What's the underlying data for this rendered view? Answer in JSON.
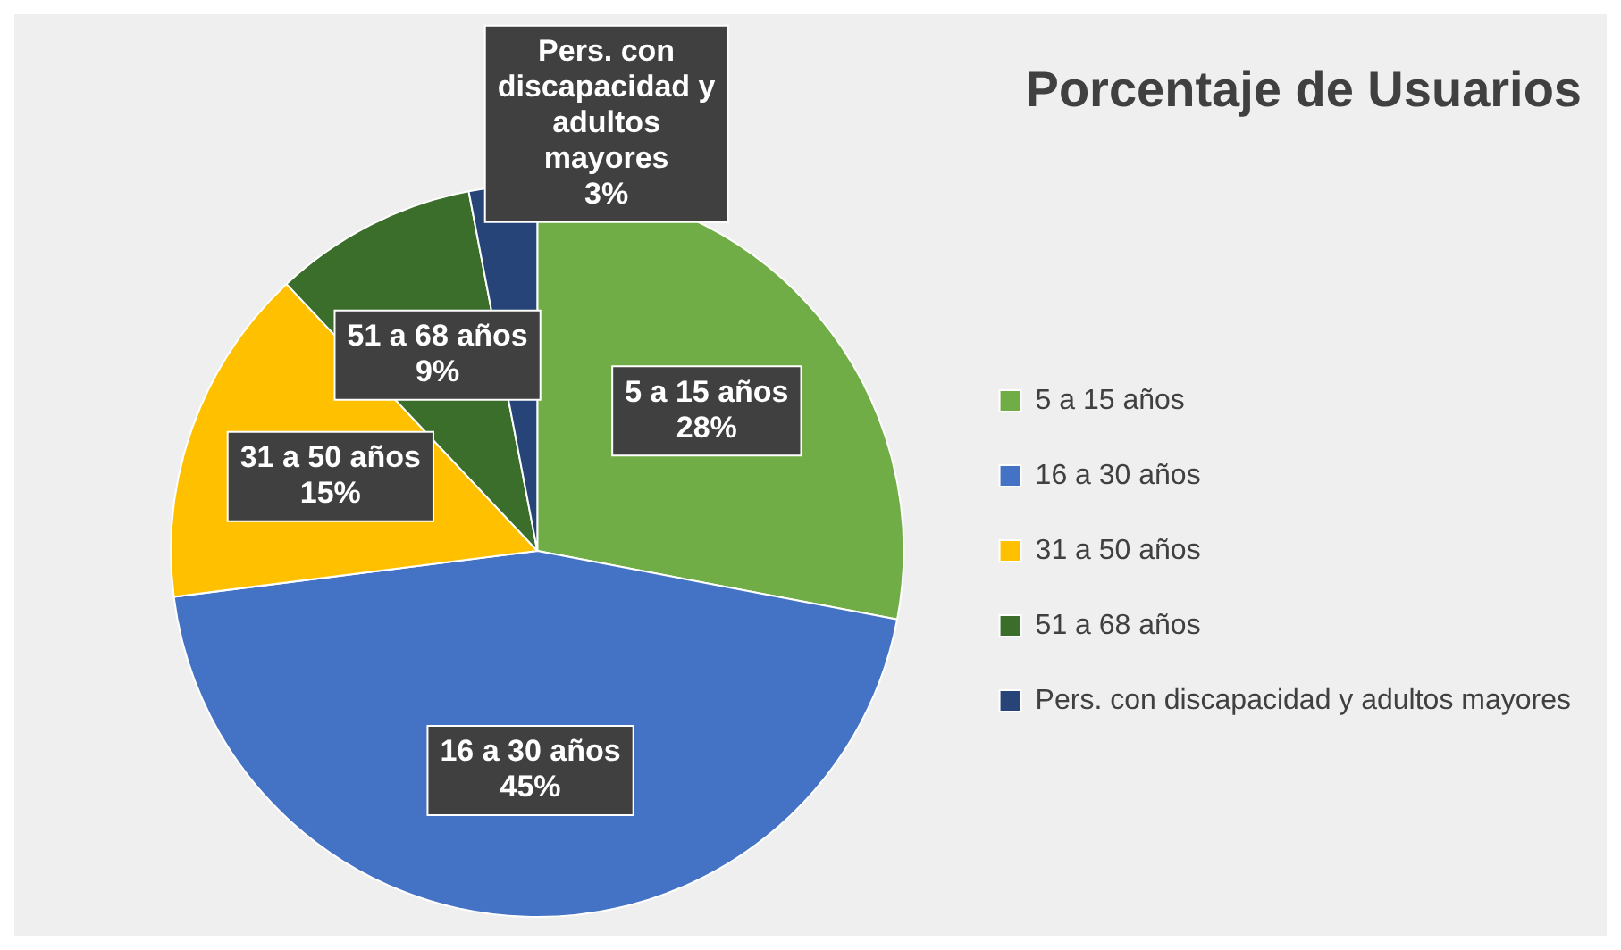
{
  "chart_data": {
    "type": "pie",
    "title": "Porcentaje de Usuarios",
    "categories": [
      "5 a 15 años",
      "16 a 30 años",
      "31 a 50 años",
      "51 a 68 años",
      "Pers. con discapacidad y adultos mayores"
    ],
    "values": [
      28,
      45,
      15,
      9,
      3
    ],
    "colors": [
      "#70ad47",
      "#4472c4",
      "#ffc000",
      "#3b6e2b",
      "#264478"
    ],
    "value_labels": [
      "28%",
      "45%",
      "15%",
      "9%",
      "3%"
    ],
    "legend": "right"
  }
}
